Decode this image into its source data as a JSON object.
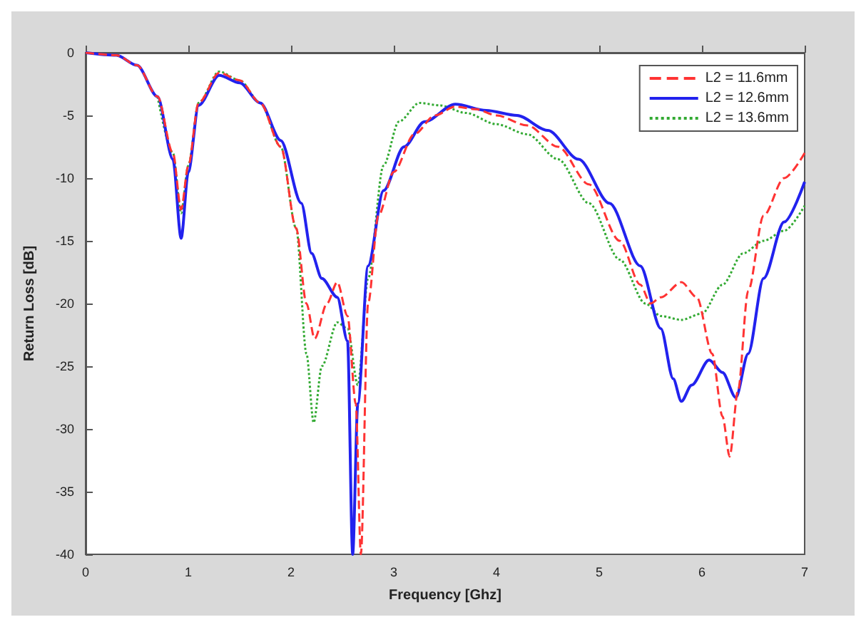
{
  "chart_data": {
    "type": "line",
    "xlabel": "Frequency [Ghz]",
    "ylabel": "Return Loss [dB]",
    "xlim": [
      0,
      7
    ],
    "xticks": [
      0,
      1,
      2,
      3,
      4,
      5,
      6,
      7
    ],
    "ylim": [
      -40,
      0
    ],
    "yticks": [
      -40,
      -35,
      -30,
      -25,
      -20,
      -15,
      -10,
      -5,
      0
    ],
    "grid": false,
    "legend": "top right",
    "marker": "none",
    "series": [
      {
        "name": "L2 = 11.6mm",
        "color": "#ff3333",
        "line_style": "dashed",
        "x": [
          0,
          0.3,
          0.5,
          0.7,
          0.85,
          0.93,
          1.0,
          1.1,
          1.3,
          1.5,
          1.7,
          1.9,
          2.05,
          2.15,
          2.23,
          2.35,
          2.45,
          2.55,
          2.63,
          2.68,
          2.75,
          2.85,
          3.0,
          3.2,
          3.4,
          3.6,
          3.8,
          4.0,
          4.3,
          4.6,
          4.9,
          5.2,
          5.4,
          5.5,
          5.6,
          5.8,
          5.95,
          6.1,
          6.2,
          6.27,
          6.35,
          6.45,
          6.6,
          6.8,
          7.0
        ],
        "values": [
          0,
          -0.2,
          -1,
          -3.5,
          -8,
          -12.5,
          -9,
          -4,
          -1.6,
          -2.2,
          -4,
          -7.5,
          -14,
          -20,
          -22.8,
          -20,
          -18.3,
          -21,
          -28,
          -40,
          -20,
          -13,
          -9.5,
          -6.5,
          -5,
          -4.3,
          -4.5,
          -5,
          -5.8,
          -7.5,
          -10.5,
          -15,
          -18.5,
          -20,
          -19.5,
          -18.3,
          -19.5,
          -24,
          -29,
          -32.2,
          -27,
          -19,
          -13,
          -10,
          -8
        ]
      },
      {
        "name": "L2 = 12.6mm",
        "color": "#2222ee",
        "line_style": "solid",
        "x": [
          0,
          0.3,
          0.5,
          0.7,
          0.85,
          0.93,
          1.0,
          1.1,
          1.3,
          1.5,
          1.7,
          1.9,
          2.1,
          2.2,
          2.3,
          2.45,
          2.55,
          2.6,
          2.65,
          2.75,
          2.9,
          3.1,
          3.3,
          3.6,
          3.9,
          4.2,
          4.5,
          4.8,
          5.1,
          5.4,
          5.6,
          5.72,
          5.8,
          5.9,
          6.07,
          6.2,
          6.33,
          6.45,
          6.6,
          6.8,
          7.0
        ],
        "values": [
          0,
          -0.2,
          -1,
          -3.5,
          -8.5,
          -14.8,
          -9.5,
          -4.2,
          -1.8,
          -2.4,
          -4,
          -7,
          -12,
          -16,
          -18,
          -19.5,
          -23,
          -40,
          -28,
          -17,
          -11,
          -7.5,
          -5.5,
          -4.1,
          -4.6,
          -5,
          -6.2,
          -8.5,
          -12,
          -17,
          -22,
          -26,
          -27.8,
          -26.5,
          -24.5,
          -25.5,
          -27.5,
          -24,
          -18,
          -13.5,
          -10.3
        ]
      },
      {
        "name": "L2 = 13.6mm",
        "color": "#33aa33",
        "line_style": "dotted",
        "x": [
          0.7,
          0.85,
          0.93,
          1.0,
          1.1,
          1.3,
          1.5,
          1.7,
          1.9,
          2.05,
          2.15,
          2.22,
          2.3,
          2.45,
          2.55,
          2.65,
          2.75,
          2.9,
          3.05,
          3.25,
          3.45,
          3.7,
          4.0,
          4.3,
          4.6,
          4.9,
          5.2,
          5.45,
          5.6,
          5.8,
          6.0,
          6.2,
          6.4,
          6.6,
          6.8,
          7.0
        ],
        "values": [
          -3.5,
          -8,
          -12.8,
          -9,
          -4,
          -1.5,
          -2.2,
          -4,
          -7.5,
          -14,
          -24,
          -29.5,
          -25,
          -21.5,
          -22,
          -26.5,
          -18,
          -9,
          -5.5,
          -4,
          -4.2,
          -4.8,
          -5.7,
          -6.5,
          -8.5,
          -12,
          -16.5,
          -20,
          -21,
          -21.3,
          -20.8,
          -18.5,
          -16,
          -15,
          -14.2,
          -12.2
        ]
      }
    ]
  }
}
